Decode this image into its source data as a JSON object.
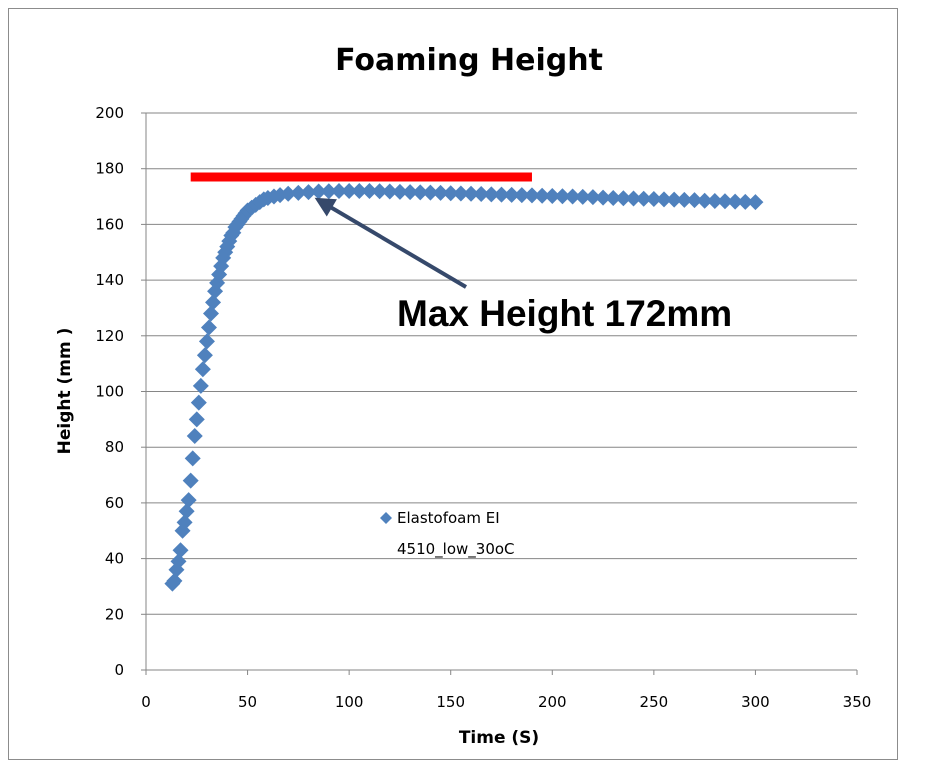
{
  "chart_data": {
    "type": "scatter",
    "title": "Foaming Height",
    "xlabel": "Time (S)",
    "ylabel": "Height (mm )",
    "xlim": [
      0,
      350
    ],
    "ylim": [
      0,
      200
    ],
    "xticks": [
      0,
      50,
      100,
      150,
      200,
      250,
      300,
      350
    ],
    "yticks": [
      0,
      20,
      40,
      60,
      80,
      100,
      120,
      140,
      160,
      180,
      200
    ],
    "grid": "horizontal",
    "legend_position": "center-left inside plot",
    "annotation": {
      "text": "Max Height 172mm",
      "arrow_to": [
        83,
        171
      ]
    },
    "reference_line": {
      "x": [
        22,
        190
      ],
      "y": 177,
      "color": "#ff0000"
    },
    "colors": {
      "series": "#4f81bd",
      "arrow": "#36496b",
      "ref_line": "#ff0000"
    },
    "series": [
      {
        "name": "Elastofoam EI 4510_low_30oC",
        "marker": "diamond",
        "points": [
          [
            13,
            31
          ],
          [
            14,
            32
          ],
          [
            15,
            36
          ],
          [
            16,
            39
          ],
          [
            17,
            43
          ],
          [
            18,
            50
          ],
          [
            19,
            53
          ],
          [
            20,
            57
          ],
          [
            21,
            61
          ],
          [
            22,
            68
          ],
          [
            23,
            76
          ],
          [
            24,
            84
          ],
          [
            25,
            90
          ],
          [
            26,
            96
          ],
          [
            27,
            102
          ],
          [
            28,
            108
          ],
          [
            29,
            113
          ],
          [
            30,
            118
          ],
          [
            31,
            123
          ],
          [
            32,
            128
          ],
          [
            33,
            132
          ],
          [
            34,
            136
          ],
          [
            35,
            139
          ],
          [
            36,
            142
          ],
          [
            37,
            145
          ],
          [
            38,
            148
          ],
          [
            39,
            150
          ],
          [
            40,
            152
          ],
          [
            41,
            154
          ],
          [
            42,
            156
          ],
          [
            43,
            157
          ],
          [
            44,
            159
          ],
          [
            45,
            160
          ],
          [
            46,
            161
          ],
          [
            47,
            162
          ],
          [
            48,
            163
          ],
          [
            49,
            164
          ],
          [
            50,
            165
          ],
          [
            52,
            166
          ],
          [
            54,
            167
          ],
          [
            56,
            168
          ],
          [
            58,
            169
          ],
          [
            60,
            169.5
          ],
          [
            63,
            170
          ],
          [
            66,
            170.5
          ],
          [
            70,
            171
          ],
          [
            75,
            171.3
          ],
          [
            80,
            171.6
          ],
          [
            85,
            171.8
          ],
          [
            90,
            171.9
          ],
          [
            95,
            172
          ],
          [
            100,
            172
          ],
          [
            105,
            172
          ],
          [
            110,
            172
          ],
          [
            115,
            171.9
          ],
          [
            120,
            171.8
          ],
          [
            125,
            171.7
          ],
          [
            130,
            171.6
          ],
          [
            135,
            171.5
          ],
          [
            140,
            171.4
          ],
          [
            145,
            171.3
          ],
          [
            150,
            171.2
          ],
          [
            155,
            171.1
          ],
          [
            160,
            171
          ],
          [
            165,
            170.9
          ],
          [
            170,
            170.8
          ],
          [
            175,
            170.7
          ],
          [
            180,
            170.6
          ],
          [
            185,
            170.5
          ],
          [
            190,
            170.4
          ],
          [
            195,
            170.3
          ],
          [
            200,
            170.2
          ],
          [
            205,
            170.1
          ],
          [
            210,
            170
          ],
          [
            215,
            169.9
          ],
          [
            220,
            169.8
          ],
          [
            225,
            169.6
          ],
          [
            230,
            169.5
          ],
          [
            235,
            169.4
          ],
          [
            240,
            169.3
          ],
          [
            245,
            169.2
          ],
          [
            250,
            169.1
          ],
          [
            255,
            169
          ],
          [
            260,
            168.9
          ],
          [
            265,
            168.8
          ],
          [
            270,
            168.7
          ],
          [
            275,
            168.5
          ],
          [
            280,
            168.4
          ],
          [
            285,
            168.3
          ],
          [
            290,
            168.2
          ],
          [
            295,
            168.1
          ],
          [
            300,
            168
          ]
        ]
      }
    ]
  }
}
